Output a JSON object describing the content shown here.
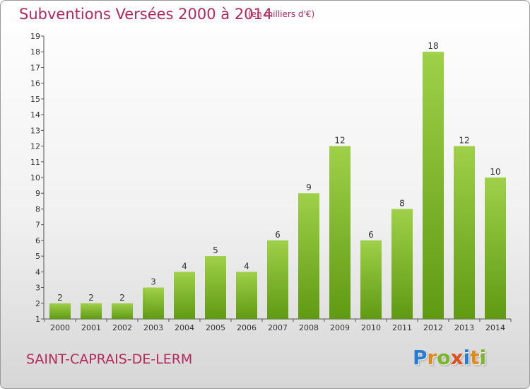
{
  "header": {
    "title": "Subventions Versées 2000 à 2014",
    "unit": "(en milliers d'€)"
  },
  "footer": {
    "commune": "SAINT-CAPRAIS-DE-LERM",
    "logo_text": "Proxiti",
    "logo_letters": [
      {
        "char": "P",
        "color": "#2a7bd4"
      },
      {
        "char": "r",
        "color": "#e08a1e"
      },
      {
        "char": "o",
        "color": "#7ab52a"
      },
      {
        "char": "x",
        "color": "#e0501e"
      },
      {
        "char": "i",
        "color": "#2a7bd4"
      },
      {
        "char": "t",
        "color": "#e08a1e"
      },
      {
        "char": "i",
        "color": "#7ab52a"
      }
    ]
  },
  "chart_data": {
    "type": "bar",
    "categories": [
      "2000",
      "2001",
      "2002",
      "2003",
      "2004",
      "2005",
      "2006",
      "2007",
      "2008",
      "2009",
      "2010",
      "2011",
      "2012",
      "2013",
      "2014"
    ],
    "values": [
      2,
      2,
      2,
      3,
      4,
      5,
      4,
      6,
      9,
      12,
      6,
      8,
      18,
      12,
      10
    ],
    "title": "Subventions Versées 2000 à 2014",
    "ylim": [
      1,
      19
    ],
    "yticks": [
      1,
      2,
      3,
      4,
      5,
      6,
      7,
      8,
      9,
      10,
      11,
      12,
      13,
      14,
      15,
      16,
      17,
      18,
      19
    ],
    "grid": false,
    "bar_color_top": "#9fd04a",
    "bar_color_bottom": "#5f9a12"
  }
}
